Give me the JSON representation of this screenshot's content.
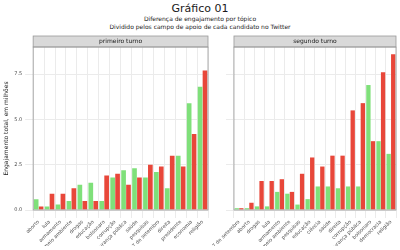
{
  "title": "Gráfico 01",
  "subtitle": [
    "Diferença de engajamento por tópico",
    "Dividido pelos campo de apoio de cada candidato no Twitter"
  ],
  "chart_data": [
    {
      "type": "bar",
      "title": "primeiro turno",
      "y_label": "Engajamento total, em milhões",
      "categories": [
        "aborto",
        "lula",
        "armamento",
        "meio ambiente",
        "drogas",
        "educação",
        "bolsonaro",
        "corrupção",
        "segurança pública",
        "saúde",
        "pesquisas",
        "7 de setembro",
        "direita",
        "presidente",
        "economia",
        "religião"
      ],
      "series": [
        {
          "color": "#7fe07a",
          "values": [
            0.6,
            0.2,
            0.3,
            0.5,
            1.4,
            1.5,
            0.5,
            1.8,
            2.2,
            2.3,
            1.8,
            2.1,
            1.2,
            3.0,
            5.9,
            6.8
          ]
        },
        {
          "color": "#e8473a",
          "values": [
            0.2,
            0.9,
            0.9,
            1.2,
            0.5,
            0.5,
            1.9,
            2.0,
            1.4,
            1.8,
            2.5,
            2.4,
            3.0,
            2.4,
            4.2,
            7.7
          ]
        }
      ],
      "ylim": [
        0,
        9
      ],
      "yticks": [
        {
          "value": 0,
          "label": "0.0"
        },
        2.5,
        {
          "value": 5,
          "label": "5.0"
        },
        7.5
      ],
      "grid": true
    },
    {
      "type": "bar",
      "title": "segundo turno",
      "categories": [
        "7 de setembro",
        "aborto",
        "drogas",
        "lula",
        "armamento",
        "meio ambiente",
        "pesquisas",
        "educação",
        "ciência",
        "saúde",
        "direita",
        "corrupção",
        "segurança pública",
        "bolsonaro",
        "democracia",
        "religião"
      ],
      "series": [
        {
          "color": "#7fe07a",
          "values": [
            0.1,
            0.1,
            0.2,
            0.2,
            1.0,
            0.9,
            0.3,
            0.6,
            1.3,
            1.3,
            1.2,
            1.3,
            1.3,
            6.9,
            3.8,
            3.1
          ]
        },
        {
          "color": "#e8473a",
          "values": [
            0.1,
            0.4,
            1.6,
            1.6,
            1.7,
            1.0,
            2.0,
            2.9,
            2.4,
            3.0,
            3.0,
            5.5,
            5.9,
            3.8,
            7.6,
            8.6
          ]
        }
      ],
      "ylim": [
        0,
        9
      ],
      "yticks": [
        {
          "value": 0,
          "label": "0.0"
        },
        2.5,
        {
          "value": 5,
          "label": "5.0"
        },
        7.5
      ],
      "grid": true,
      "tick_labels": "x"
    }
  ]
}
